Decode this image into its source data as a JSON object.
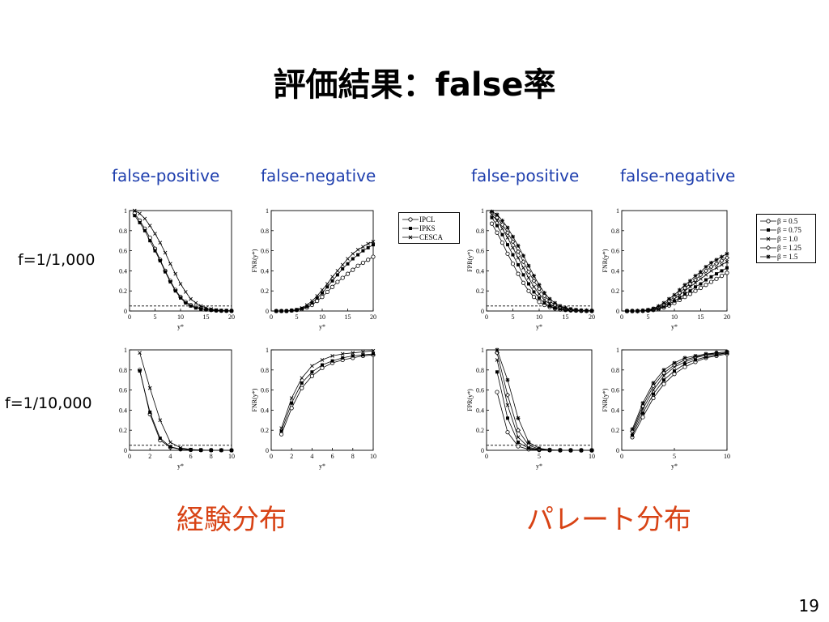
{
  "slide": {
    "title": "評価結果：false率",
    "column_labels": [
      "false-positive",
      "false-negative",
      "false-positive",
      "false-negative"
    ],
    "row_labels": [
      "f=1/1,000",
      "f=1/10,000"
    ],
    "distribution_labels": [
      "経験分布",
      "パレート分布"
    ],
    "page_number": "19"
  },
  "legends": {
    "methods": [
      "IPCL",
      "IPKS",
      "CESCA"
    ],
    "betas": [
      "β = 0.5",
      "β = 0.75",
      "β = 1.0",
      "β = 1.25",
      "β = 1.5"
    ]
  },
  "chart_data": [
    {
      "type": "line",
      "id": "emp-fp-1000",
      "xlabel": "y*",
      "ylabel": "",
      "xlim": [
        0,
        20
      ],
      "ylim": [
        0,
        1
      ],
      "xticks": [
        0,
        5,
        10,
        15,
        20
      ],
      "yticks": [
        0,
        0.2,
        0.4,
        0.6,
        0.8,
        1
      ],
      "threshold": 0.05,
      "x": [
        1,
        2,
        3,
        4,
        5,
        6,
        7,
        8,
        9,
        10,
        11,
        12,
        13,
        14,
        15,
        16,
        17,
        18,
        19,
        20
      ],
      "series": [
        {
          "name": "IPCL",
          "marker": "circle",
          "values": [
            0.97,
            0.9,
            0.82,
            0.73,
            0.62,
            0.51,
            0.4,
            0.3,
            0.21,
            0.14,
            0.09,
            0.06,
            0.04,
            0.025,
            0.015,
            0.01,
            0.005,
            0.003,
            0.002,
            0.001
          ]
        },
        {
          "name": "IPKS",
          "marker": "square",
          "values": [
            0.95,
            0.88,
            0.8,
            0.7,
            0.6,
            0.5,
            0.39,
            0.29,
            0.2,
            0.13,
            0.08,
            0.05,
            0.03,
            0.02,
            0.012,
            0.008,
            0.005,
            0.003,
            0.002,
            0.001
          ]
        },
        {
          "name": "CESCA",
          "marker": "x",
          "values": [
            1.0,
            0.97,
            0.92,
            0.85,
            0.77,
            0.68,
            0.58,
            0.47,
            0.37,
            0.27,
            0.19,
            0.12,
            0.08,
            0.05,
            0.03,
            0.02,
            0.01,
            0.006,
            0.004,
            0.002
          ]
        }
      ]
    },
    {
      "type": "line",
      "id": "emp-fn-1000",
      "xlabel": "y*",
      "ylabel": "FNR(y*)",
      "xlim": [
        0,
        20
      ],
      "ylim": [
        0,
        1
      ],
      "xticks": [
        0,
        5,
        10,
        15,
        20
      ],
      "yticks": [
        0,
        0.2,
        0.4,
        0.6,
        0.8,
        1
      ],
      "x": [
        1,
        2,
        3,
        4,
        5,
        6,
        7,
        8,
        9,
        10,
        11,
        12,
        13,
        14,
        15,
        16,
        17,
        18,
        19,
        20
      ],
      "series": [
        {
          "name": "IPCL",
          "marker": "circle",
          "values": [
            0.0,
            0.0,
            0.0,
            0.005,
            0.01,
            0.02,
            0.035,
            0.06,
            0.1,
            0.14,
            0.19,
            0.24,
            0.29,
            0.33,
            0.37,
            0.41,
            0.45,
            0.48,
            0.51,
            0.54
          ]
        },
        {
          "name": "IPKS",
          "marker": "square",
          "values": [
            0.0,
            0.0,
            0.0,
            0.005,
            0.01,
            0.025,
            0.045,
            0.08,
            0.13,
            0.18,
            0.24,
            0.3,
            0.36,
            0.42,
            0.47,
            0.52,
            0.56,
            0.6,
            0.63,
            0.66
          ]
        },
        {
          "name": "CESCA",
          "marker": "x",
          "values": [
            0.0,
            0.0,
            0.0,
            0.005,
            0.015,
            0.03,
            0.06,
            0.1,
            0.15,
            0.21,
            0.27,
            0.34,
            0.4,
            0.46,
            0.52,
            0.57,
            0.61,
            0.64,
            0.67,
            0.69
          ]
        }
      ]
    },
    {
      "type": "line",
      "id": "par-fp-1000",
      "xlabel": "y*",
      "ylabel": "FPR(y*)",
      "xlim": [
        0,
        20
      ],
      "ylim": [
        0,
        1
      ],
      "xticks": [
        0,
        5,
        10,
        15,
        20
      ],
      "yticks": [
        0,
        0.2,
        0.4,
        0.6,
        0.8,
        1
      ],
      "threshold": 0.05,
      "x": [
        1,
        2,
        3,
        4,
        5,
        6,
        7,
        8,
        9,
        10,
        11,
        12,
        13,
        14,
        15,
        16,
        17,
        18,
        19,
        20
      ],
      "series": [
        {
          "name": "β = 0.5",
          "marker": "circle",
          "values": [
            0.87,
            0.78,
            0.68,
            0.57,
            0.47,
            0.37,
            0.28,
            0.2,
            0.14,
            0.09,
            0.06,
            0.04,
            0.025,
            0.015,
            0.01,
            0.006,
            0.004,
            0.002,
            0.001,
            0.001
          ]
        },
        {
          "name": "β = 0.75",
          "marker": "square",
          "values": [
            0.93,
            0.85,
            0.76,
            0.66,
            0.56,
            0.46,
            0.36,
            0.27,
            0.19,
            0.13,
            0.08,
            0.05,
            0.03,
            0.02,
            0.012,
            0.008,
            0.005,
            0.003,
            0.002,
            0.001
          ]
        },
        {
          "name": "β = 1.0",
          "marker": "x",
          "values": [
            0.96,
            0.9,
            0.82,
            0.73,
            0.63,
            0.53,
            0.43,
            0.33,
            0.24,
            0.17,
            0.11,
            0.07,
            0.045,
            0.03,
            0.018,
            0.01,
            0.006,
            0.004,
            0.002,
            0.001
          ]
        },
        {
          "name": "β = 1.25",
          "marker": "diamond",
          "values": [
            0.98,
            0.93,
            0.86,
            0.78,
            0.69,
            0.59,
            0.49,
            0.39,
            0.3,
            0.22,
            0.15,
            0.1,
            0.06,
            0.04,
            0.025,
            0.015,
            0.009,
            0.005,
            0.003,
            0.002
          ]
        },
        {
          "name": "β = 1.5",
          "marker": "star",
          "values": [
            0.99,
            0.96,
            0.9,
            0.83,
            0.74,
            0.65,
            0.55,
            0.45,
            0.35,
            0.26,
            0.18,
            0.12,
            0.08,
            0.05,
            0.03,
            0.02,
            0.012,
            0.007,
            0.004,
            0.002
          ]
        }
      ]
    },
    {
      "type": "line",
      "id": "par-fn-1000",
      "xlabel": "y*",
      "ylabel": "FNR(y*)",
      "xlim": [
        0,
        20
      ],
      "ylim": [
        0,
        1
      ],
      "xticks": [
        0,
        5,
        10,
        15,
        20
      ],
      "yticks": [
        0,
        0.2,
        0.4,
        0.6,
        0.8,
        1
      ],
      "x": [
        1,
        2,
        3,
        4,
        5,
        6,
        7,
        8,
        9,
        10,
        11,
        12,
        13,
        14,
        15,
        16,
        17,
        18,
        19,
        20
      ],
      "series": [
        {
          "name": "β = 0.5",
          "marker": "circle",
          "values": [
            0.0,
            0.0,
            0.0,
            0.002,
            0.005,
            0.01,
            0.02,
            0.035,
            0.055,
            0.08,
            0.11,
            0.14,
            0.17,
            0.2,
            0.23,
            0.26,
            0.29,
            0.32,
            0.35,
            0.38
          ]
        },
        {
          "name": "β = 0.75",
          "marker": "square",
          "values": [
            0.0,
            0.0,
            0.0,
            0.002,
            0.006,
            0.013,
            0.025,
            0.045,
            0.07,
            0.1,
            0.13,
            0.17,
            0.2,
            0.24,
            0.27,
            0.31,
            0.34,
            0.37,
            0.4,
            0.43
          ]
        },
        {
          "name": "β = 1.0",
          "marker": "x",
          "values": [
            0.0,
            0.0,
            0.0,
            0.003,
            0.008,
            0.016,
            0.03,
            0.055,
            0.085,
            0.12,
            0.16,
            0.2,
            0.24,
            0.28,
            0.32,
            0.36,
            0.4,
            0.43,
            0.46,
            0.49
          ]
        },
        {
          "name": "β = 1.25",
          "marker": "diamond",
          "values": [
            0.0,
            0.0,
            0.0,
            0.003,
            0.01,
            0.02,
            0.04,
            0.065,
            0.1,
            0.14,
            0.18,
            0.23,
            0.27,
            0.31,
            0.36,
            0.4,
            0.44,
            0.47,
            0.5,
            0.53
          ]
        },
        {
          "name": "β = 1.5",
          "marker": "star",
          "values": [
            0.0,
            0.0,
            0.0,
            0.004,
            0.012,
            0.025,
            0.048,
            0.08,
            0.12,
            0.16,
            0.21,
            0.26,
            0.3,
            0.35,
            0.39,
            0.44,
            0.48,
            0.51,
            0.54,
            0.57
          ]
        }
      ]
    },
    {
      "type": "line",
      "id": "emp-fp-10000",
      "xlabel": "y*",
      "ylabel": "",
      "xlim": [
        0,
        10
      ],
      "ylim": [
        0,
        1
      ],
      "xticks": [
        0,
        2,
        4,
        6,
        8,
        10
      ],
      "yticks": [
        0,
        0.2,
        0.4,
        0.6,
        0.8,
        1
      ],
      "threshold": 0.05,
      "x": [
        1,
        2,
        3,
        4,
        5,
        6,
        7,
        8,
        9,
        10
      ],
      "series": [
        {
          "name": "IPCL",
          "marker": "circle",
          "values": [
            0.8,
            0.36,
            0.1,
            0.03,
            0.01,
            0.004,
            0.002,
            0.001,
            0.001,
            0.0
          ]
        },
        {
          "name": "IPKS",
          "marker": "square",
          "values": [
            0.79,
            0.38,
            0.12,
            0.035,
            0.012,
            0.005,
            0.002,
            0.001,
            0.001,
            0.0
          ]
        },
        {
          "name": "CESCA",
          "marker": "x",
          "values": [
            0.97,
            0.62,
            0.3,
            0.08,
            0.025,
            0.008,
            0.003,
            0.001,
            0.001,
            0.0
          ]
        }
      ]
    },
    {
      "type": "line",
      "id": "emp-fn-10000",
      "xlabel": "y*",
      "ylabel": "FNR(y*)",
      "xlim": [
        0,
        10
      ],
      "ylim": [
        0,
        1
      ],
      "xticks": [
        0,
        2,
        4,
        6,
        8,
        10
      ],
      "yticks": [
        0,
        0.2,
        0.4,
        0.6,
        0.8,
        1
      ],
      "x": [
        1,
        2,
        3,
        4,
        5,
        6,
        7,
        8,
        9,
        10
      ],
      "series": [
        {
          "name": "IPCL",
          "marker": "circle",
          "values": [
            0.16,
            0.42,
            0.62,
            0.74,
            0.82,
            0.87,
            0.9,
            0.92,
            0.94,
            0.95
          ]
        },
        {
          "name": "IPKS",
          "marker": "square",
          "values": [
            0.19,
            0.47,
            0.67,
            0.78,
            0.85,
            0.89,
            0.92,
            0.94,
            0.95,
            0.96
          ]
        },
        {
          "name": "CESCA",
          "marker": "x",
          "values": [
            0.22,
            0.52,
            0.72,
            0.84,
            0.9,
            0.94,
            0.96,
            0.97,
            0.98,
            0.99
          ]
        }
      ]
    },
    {
      "type": "line",
      "id": "par-fp-10000",
      "xlabel": "y*",
      "ylabel": "FPR(y*)",
      "xlim": [
        0,
        10
      ],
      "ylim": [
        0,
        1
      ],
      "xticks": [
        0,
        5,
        10
      ],
      "yticks": [
        0,
        0.2,
        0.4,
        0.6,
        0.8,
        1
      ],
      "threshold": 0.05,
      "x": [
        1,
        2,
        3,
        4,
        5,
        6,
        7,
        8,
        9,
        10
      ],
      "series": [
        {
          "name": "β = 0.5",
          "marker": "circle",
          "values": [
            0.58,
            0.18,
            0.04,
            0.01,
            0.003,
            0.001,
            0.0,
            0.0,
            0.0,
            0.0
          ]
        },
        {
          "name": "β = 0.75",
          "marker": "square",
          "values": [
            0.78,
            0.32,
            0.08,
            0.02,
            0.005,
            0.002,
            0.001,
            0.0,
            0.0,
            0.0
          ]
        },
        {
          "name": "β = 1.0",
          "marker": "x",
          "values": [
            0.9,
            0.45,
            0.13,
            0.03,
            0.008,
            0.002,
            0.001,
            0.0,
            0.0,
            0.0
          ]
        },
        {
          "name": "β = 1.25",
          "marker": "diamond",
          "values": [
            0.97,
            0.55,
            0.2,
            0.05,
            0.012,
            0.003,
            0.001,
            0.0,
            0.0,
            0.0
          ]
        },
        {
          "name": "β = 1.5",
          "marker": "star",
          "values": [
            1.0,
            0.7,
            0.32,
            0.08,
            0.02,
            0.005,
            0.001,
            0.0,
            0.0,
            0.0
          ]
        }
      ]
    },
    {
      "type": "line",
      "id": "par-fn-10000",
      "xlabel": "y*",
      "ylabel": "FNR(y*)",
      "xlim": [
        0,
        10
      ],
      "ylim": [
        0,
        1
      ],
      "xticks": [
        0,
        5,
        10
      ],
      "yticks": [
        0,
        0.2,
        0.4,
        0.6,
        0.8,
        1
      ],
      "x": [
        1,
        2,
        3,
        4,
        5,
        6,
        7,
        8,
        9,
        10
      ],
      "series": [
        {
          "name": "β = 0.5",
          "marker": "circle",
          "values": [
            0.13,
            0.33,
            0.52,
            0.66,
            0.76,
            0.83,
            0.88,
            0.92,
            0.94,
            0.96
          ]
        },
        {
          "name": "β = 0.75",
          "marker": "square",
          "values": [
            0.15,
            0.37,
            0.56,
            0.7,
            0.79,
            0.86,
            0.9,
            0.93,
            0.95,
            0.97
          ]
        },
        {
          "name": "β = 1.0",
          "marker": "x",
          "values": [
            0.17,
            0.41,
            0.6,
            0.74,
            0.83,
            0.88,
            0.92,
            0.95,
            0.96,
            0.97
          ]
        },
        {
          "name": "β = 1.25",
          "marker": "diamond",
          "values": [
            0.19,
            0.44,
            0.64,
            0.77,
            0.85,
            0.9,
            0.93,
            0.95,
            0.97,
            0.98
          ]
        },
        {
          "name": "β = 1.5",
          "marker": "star",
          "values": [
            0.21,
            0.47,
            0.67,
            0.8,
            0.87,
            0.92,
            0.94,
            0.96,
            0.97,
            0.98
          ]
        }
      ]
    }
  ]
}
